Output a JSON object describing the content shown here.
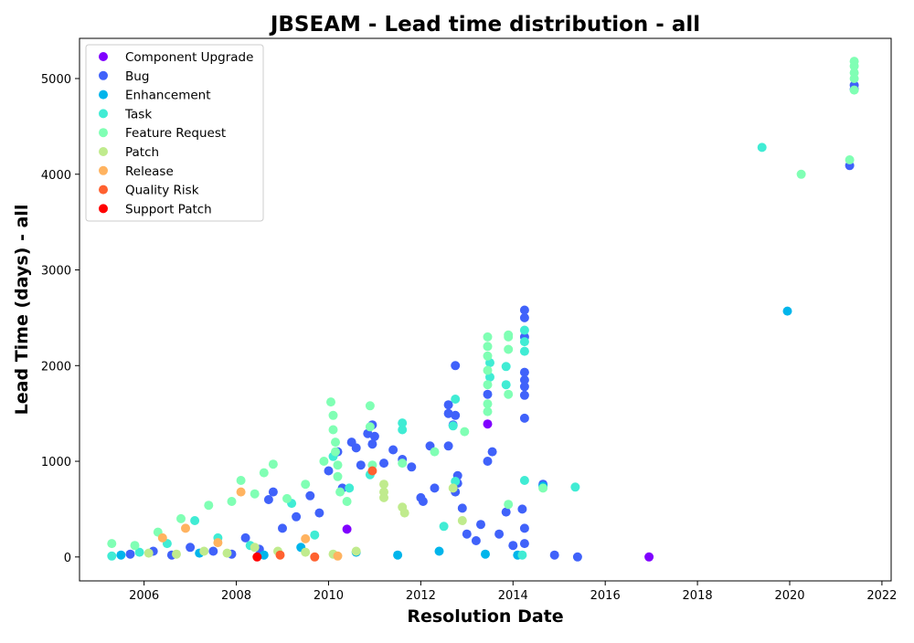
{
  "chart_data": {
    "type": "scatter",
    "title": "JBSEAM - Lead time distribution - all",
    "xlabel": "Resolution Date",
    "ylabel": "Lead Time (days) - all",
    "xlim": [
      2004.6,
      2022.2
    ],
    "ylim": [
      -250,
      5420
    ],
    "x_ticks": [
      2006,
      2008,
      2010,
      2012,
      2014,
      2016,
      2018,
      2020,
      2022
    ],
    "y_ticks": [
      0,
      1000,
      2000,
      3000,
      4000,
      5000
    ],
    "grid": false,
    "legend_position": "top-left",
    "series": [
      {
        "name": "Component Upgrade",
        "color": "#8000ff",
        "points": [
          [
            2010.4,
            290
          ],
          [
            2013.45,
            1390
          ],
          [
            2016.95,
            0
          ]
        ]
      },
      {
        "name": "Bug",
        "color": "#4062fa",
        "points": [
          [
            2005.7,
            30
          ],
          [
            2006.2,
            60
          ],
          [
            2006.6,
            20
          ],
          [
            2007.0,
            100
          ],
          [
            2007.5,
            60
          ],
          [
            2007.9,
            30
          ],
          [
            2008.2,
            200
          ],
          [
            2008.5,
            80
          ],
          [
            2008.7,
            600
          ],
          [
            2008.8,
            680
          ],
          [
            2009.0,
            300
          ],
          [
            2009.3,
            420
          ],
          [
            2009.6,
            640
          ],
          [
            2009.8,
            460
          ],
          [
            2010.0,
            900
          ],
          [
            2010.2,
            1100
          ],
          [
            2010.3,
            720
          ],
          [
            2010.5,
            1200
          ],
          [
            2010.6,
            1140
          ],
          [
            2010.7,
            960
          ],
          [
            2010.85,
            1290
          ],
          [
            2010.95,
            1380
          ],
          [
            2010.95,
            1180
          ],
          [
            2011.0,
            1260
          ],
          [
            2011.2,
            980
          ],
          [
            2011.4,
            1120
          ],
          [
            2011.6,
            1020
          ],
          [
            2011.8,
            940
          ],
          [
            2012.0,
            620
          ],
          [
            2012.05,
            580
          ],
          [
            2012.2,
            1160
          ],
          [
            2012.3,
            720
          ],
          [
            2012.6,
            1590
          ],
          [
            2012.6,
            1500
          ],
          [
            2012.6,
            1160
          ],
          [
            2012.7,
            1380
          ],
          [
            2012.75,
            2000
          ],
          [
            2012.75,
            1480
          ],
          [
            2012.8,
            850
          ],
          [
            2012.8,
            770
          ],
          [
            2012.75,
            680
          ],
          [
            2012.9,
            510
          ],
          [
            2013.0,
            240
          ],
          [
            2013.2,
            170
          ],
          [
            2013.3,
            340
          ],
          [
            2013.45,
            1700
          ],
          [
            2013.45,
            1000
          ],
          [
            2013.55,
            1100
          ],
          [
            2013.7,
            240
          ],
          [
            2013.85,
            470
          ],
          [
            2014.0,
            120
          ],
          [
            2014.2,
            500
          ],
          [
            2014.25,
            2580
          ],
          [
            2014.25,
            2500
          ],
          [
            2014.25,
            2300
          ],
          [
            2014.25,
            1930
          ],
          [
            2014.25,
            1850
          ],
          [
            2014.25,
            1780
          ],
          [
            2014.25,
            1690
          ],
          [
            2014.25,
            1450
          ],
          [
            2014.25,
            300
          ],
          [
            2014.25,
            140
          ],
          [
            2014.65,
            760
          ],
          [
            2014.9,
            20
          ],
          [
            2015.4,
            0
          ],
          [
            2021.3,
            4090
          ],
          [
            2021.4,
            4930
          ],
          [
            2021.4,
            4890
          ]
        ]
      },
      {
        "name": "Enhancement",
        "color": "#00b5eb",
        "points": [
          [
            2005.5,
            20
          ],
          [
            2007.2,
            40
          ],
          [
            2008.6,
            20
          ],
          [
            2009.4,
            100
          ],
          [
            2010.6,
            50
          ],
          [
            2011.5,
            20
          ],
          [
            2012.4,
            60
          ],
          [
            2013.4,
            30
          ],
          [
            2014.1,
            20
          ],
          [
            2014.65,
            740
          ],
          [
            2019.95,
            2570
          ]
        ]
      },
      {
        "name": "Task",
        "color": "#40ecd4",
        "points": [
          [
            2005.3,
            10
          ],
          [
            2005.9,
            50
          ],
          [
            2006.5,
            140
          ],
          [
            2007.1,
            380
          ],
          [
            2007.6,
            200
          ],
          [
            2008.3,
            120
          ],
          [
            2009.2,
            560
          ],
          [
            2009.7,
            230
          ],
          [
            2010.1,
            1050
          ],
          [
            2010.45,
            720
          ],
          [
            2010.9,
            860
          ],
          [
            2011.6,
            1400
          ],
          [
            2011.6,
            1330
          ],
          [
            2012.5,
            320
          ],
          [
            2012.75,
            1650
          ],
          [
            2012.7,
            1370
          ],
          [
            2012.75,
            790
          ],
          [
            2013.5,
            2030
          ],
          [
            2013.5,
            1880
          ],
          [
            2013.85,
            1990
          ],
          [
            2013.85,
            1800
          ],
          [
            2014.2,
            20
          ],
          [
            2014.25,
            2370
          ],
          [
            2014.25,
            2250
          ],
          [
            2014.25,
            2150
          ],
          [
            2014.25,
            800
          ],
          [
            2015.35,
            730
          ],
          [
            2019.4,
            4280
          ]
        ]
      },
      {
        "name": "Feature Request",
        "color": "#80ffb4",
        "points": [
          [
            2005.3,
            140
          ],
          [
            2005.8,
            120
          ],
          [
            2006.3,
            260
          ],
          [
            2006.8,
            400
          ],
          [
            2007.4,
            540
          ],
          [
            2007.9,
            580
          ],
          [
            2008.1,
            800
          ],
          [
            2008.4,
            660
          ],
          [
            2008.6,
            880
          ],
          [
            2008.8,
            970
          ],
          [
            2009.1,
            610
          ],
          [
            2009.5,
            760
          ],
          [
            2009.9,
            1000
          ],
          [
            2010.05,
            1620
          ],
          [
            2010.1,
            1480
          ],
          [
            2010.1,
            1330
          ],
          [
            2010.15,
            1200
          ],
          [
            2010.15,
            1100
          ],
          [
            2010.2,
            960
          ],
          [
            2010.2,
            840
          ],
          [
            2010.25,
            680
          ],
          [
            2010.4,
            580
          ],
          [
            2010.9,
            1580
          ],
          [
            2010.9,
            1360
          ],
          [
            2010.95,
            960
          ],
          [
            2011.6,
            980
          ],
          [
            2012.3,
            1100
          ],
          [
            2012.95,
            1310
          ],
          [
            2013.45,
            2300
          ],
          [
            2013.45,
            2200
          ],
          [
            2013.45,
            2100
          ],
          [
            2013.45,
            1950
          ],
          [
            2013.45,
            1800
          ],
          [
            2013.45,
            1600
          ],
          [
            2013.45,
            1520
          ],
          [
            2013.9,
            2320
          ],
          [
            2013.9,
            2300
          ],
          [
            2013.9,
            2170
          ],
          [
            2013.9,
            1700
          ],
          [
            2013.9,
            550
          ],
          [
            2014.65,
            720
          ],
          [
            2020.25,
            4000
          ],
          [
            2021.3,
            4150
          ],
          [
            2021.4,
            5180
          ],
          [
            2021.4,
            5130
          ],
          [
            2021.4,
            5060
          ],
          [
            2021.4,
            5000
          ],
          [
            2021.4,
            4880
          ]
        ]
      },
      {
        "name": "Patch",
        "color": "#c0eb8d",
        "points": [
          [
            2006.1,
            40
          ],
          [
            2006.7,
            30
          ],
          [
            2007.3,
            60
          ],
          [
            2007.8,
            40
          ],
          [
            2008.4,
            100
          ],
          [
            2008.9,
            60
          ],
          [
            2009.5,
            50
          ],
          [
            2010.1,
            30
          ],
          [
            2010.6,
            60
          ],
          [
            2011.2,
            760
          ],
          [
            2011.2,
            680
          ],
          [
            2011.2,
            620
          ],
          [
            2011.6,
            520
          ],
          [
            2011.65,
            460
          ],
          [
            2012.7,
            720
          ],
          [
            2012.9,
            380
          ]
        ]
      },
      {
        "name": "Release",
        "color": "#ffb360",
        "points": [
          [
            2006.4,
            200
          ],
          [
            2006.9,
            300
          ],
          [
            2007.6,
            150
          ],
          [
            2008.1,
            680
          ],
          [
            2009.5,
            190
          ],
          [
            2010.2,
            10
          ]
        ]
      },
      {
        "name": "Quality Risk",
        "color": "#ff6130",
        "points": [
          [
            2008.95,
            20
          ],
          [
            2009.7,
            0
          ],
          [
            2010.95,
            900
          ]
        ]
      },
      {
        "name": "Support Patch",
        "color": "#ff0000",
        "points": [
          [
            2008.45,
            0
          ]
        ]
      }
    ]
  }
}
